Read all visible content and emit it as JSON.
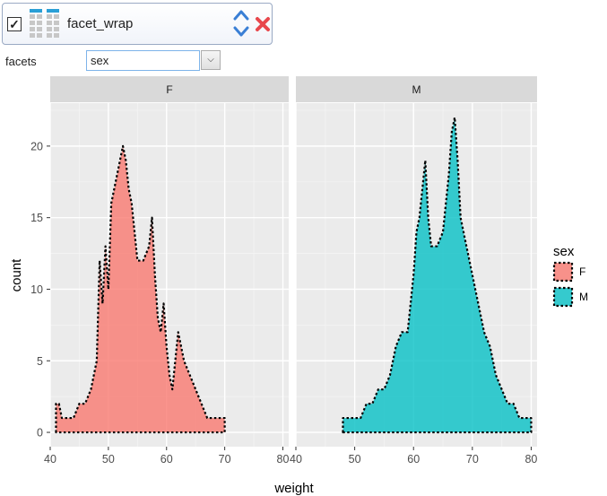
{
  "layer": {
    "checked": true,
    "title": "facet_wrap"
  },
  "facets": {
    "label": "facets",
    "value": "sex"
  },
  "colors": {
    "F": "#f8766d",
    "M": "#00bfc4",
    "panel": "#ebebeb",
    "strip": "#d9d9d9"
  },
  "chart_data": {
    "type": "area",
    "title": "",
    "xlabel": "weight",
    "ylabel": "count",
    "xlim": [
      40,
      81
    ],
    "ylim": [
      0,
      23
    ],
    "x_ticks": [
      "40",
      "50",
      "60",
      "70",
      "80"
    ],
    "y_ticks": [
      "0",
      "5",
      "10",
      "15",
      "20"
    ],
    "legend": {
      "title": "sex",
      "entries": [
        "F",
        "M"
      ],
      "position": "right"
    },
    "panels": [
      {
        "strip": "F",
        "series": [
          {
            "name": "F",
            "x": [
              41,
              41.5,
              42,
              43,
              44,
              45,
              46,
              47,
              48,
              48.5,
              49,
              49.5,
              50,
              50.5,
              51,
              52,
              52.5,
              53,
              53.5,
              54,
              55,
              56,
              57,
              57.5,
              58,
              58.5,
              59,
              59.5,
              60,
              60.5,
              61,
              61.5,
              62,
              62.5,
              63,
              64,
              65,
              66,
              67,
              68,
              69,
              70
            ],
            "y": [
              2,
              2,
              1,
              1,
              1,
              2,
              2,
              3,
              5,
              12,
              9,
              13,
              10,
              16,
              17,
              19,
              20,
              19,
              17,
              16,
              12,
              12,
              13,
              15,
              11,
              8,
              7,
              9,
              6,
              4,
              3,
              5,
              7,
              6,
              5,
              4,
              3,
              2,
              1,
              1,
              1,
              1
            ]
          }
        ]
      },
      {
        "strip": "M",
        "series": [
          {
            "name": "M",
            "x": [
              48,
              49,
              50,
              51,
              52,
              53,
              54,
              55,
              56,
              57,
              58,
              59,
              60,
              60.5,
              61,
              61.5,
              62,
              62.5,
              63,
              64,
              65,
              65.5,
              66,
              66.5,
              67,
              67.5,
              68,
              69,
              70,
              71,
              72,
              73,
              74,
              75,
              76,
              77,
              78,
              79,
              80
            ],
            "y": [
              1,
              1,
              1,
              1,
              2,
              2,
              3,
              3,
              4,
              6,
              7,
              7,
              11,
              14,
              15,
              17,
              19,
              15,
              13,
              13,
              14,
              16,
              18,
              21,
              22,
              19,
              15,
              13,
              11,
              9,
              7,
              6,
              4,
              3,
              2,
              2,
              1,
              1,
              1
            ]
          }
        ]
      }
    ]
  }
}
